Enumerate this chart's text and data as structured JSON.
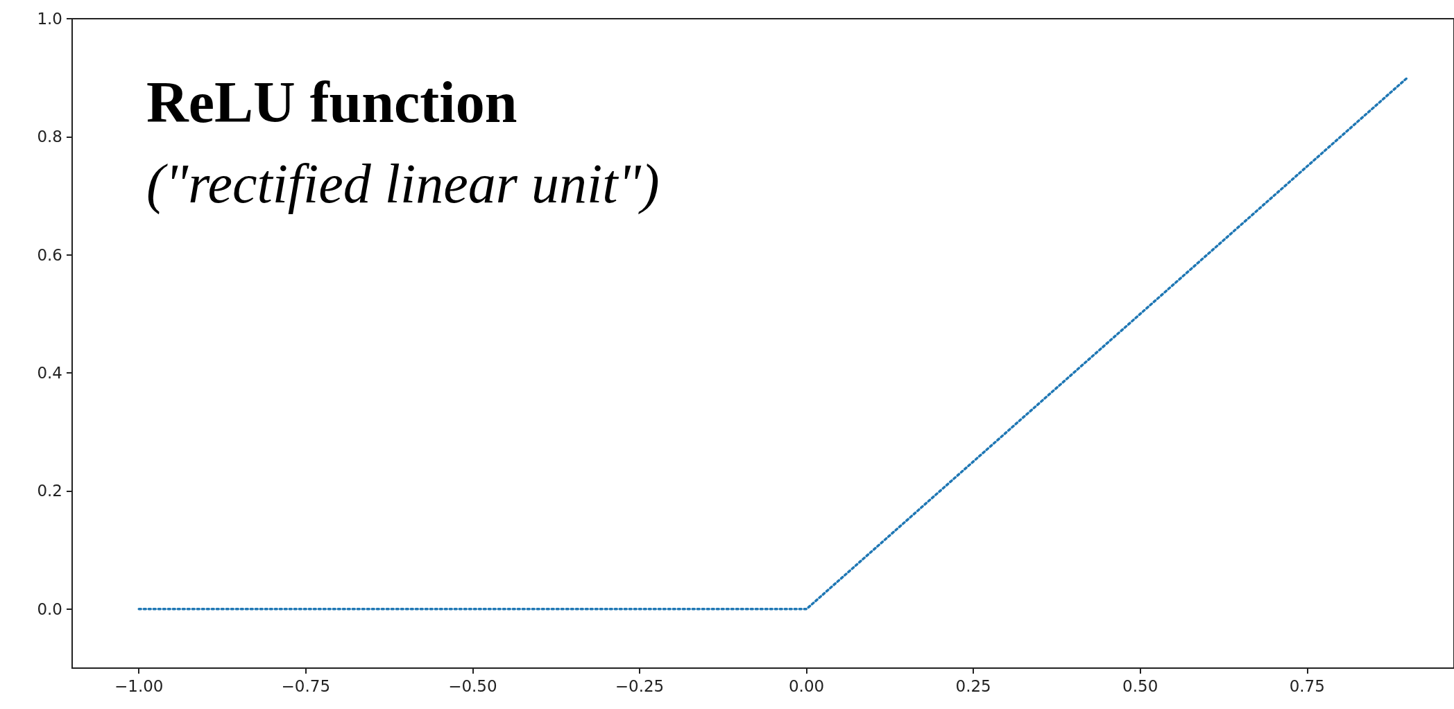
{
  "chart_data": {
    "type": "line",
    "title": "ReLU function",
    "subtitle": "(\"rectified linear unit\")",
    "x": [
      -1,
      0,
      0.9
    ],
    "series": [
      {
        "color": "#1f77b4",
        "values": [
          0,
          0,
          0.9
        ]
      }
    ],
    "xlim": [
      -1.1,
      0.97
    ],
    "xticks": [
      {
        "value": -1,
        "label": "−1.00"
      },
      {
        "value": -0.75,
        "label": "−0.75"
      },
      {
        "value": -0.5,
        "label": "−0.50"
      },
      {
        "value": -0.25,
        "label": "−0.25"
      },
      {
        "value": 0,
        "label": "0.00"
      },
      {
        "value": 0.25,
        "label": "0.25"
      },
      {
        "value": 0.5,
        "label": "0.50"
      },
      {
        "value": 0.75,
        "label": "0.75"
      }
    ],
    "ylim": [
      -0.1,
      1.0
    ],
    "yticks": [
      {
        "value": 0,
        "label": "0.0"
      },
      {
        "value": 0.2,
        "label": "0.2"
      },
      {
        "value": 0.4,
        "label": "0.4"
      },
      {
        "value": 0.6,
        "label": "0.6"
      },
      {
        "value": 0.8,
        "label": "0.8"
      },
      {
        "value": 1,
        "label": "1.0"
      }
    ],
    "grid": false,
    "marker": "none",
    "line_style": "dotted"
  }
}
